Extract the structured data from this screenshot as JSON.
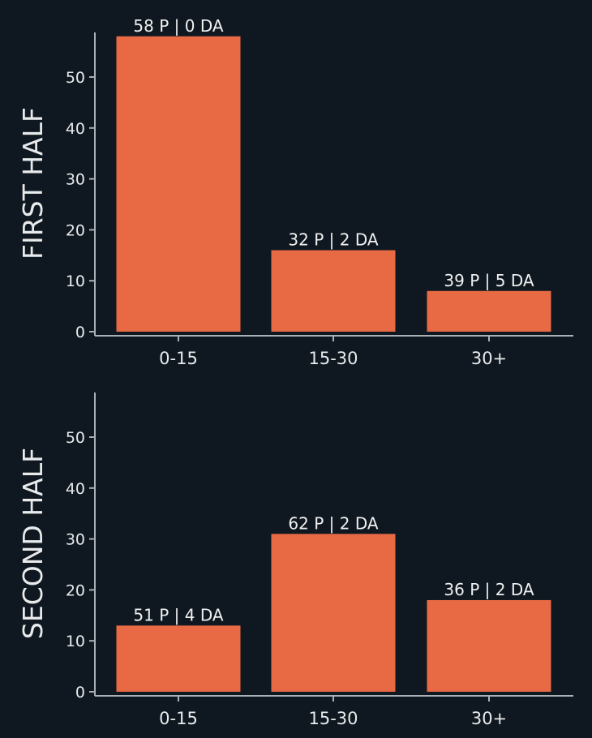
{
  "colors": {
    "background": "#0f1820",
    "bar": "#e76a45",
    "axis": "#a9b0b6",
    "text": "#e8eaec"
  },
  "chart_data": [
    {
      "type": "bar",
      "title": "FIRST HALF",
      "categories": [
        "0-15",
        "15-30",
        "30+"
      ],
      "values": [
        58,
        16,
        8
      ],
      "bar_labels": [
        "58 P | 0 DA",
        "32 P | 2 DA",
        "39 P | 5 DA"
      ],
      "yticks": [
        0,
        10,
        20,
        30,
        40,
        50
      ],
      "ylim": [
        0,
        58
      ],
      "xlabel": "",
      "ylabel": "",
      "grid": false
    },
    {
      "type": "bar",
      "title": "SECOND HALF",
      "categories": [
        "0-15",
        "15-30",
        "30+"
      ],
      "values": [
        13,
        31,
        18
      ],
      "bar_labels": [
        "51 P | 4 DA",
        "62 P | 2 DA",
        "36 P | 2 DA"
      ],
      "yticks": [
        0,
        10,
        20,
        30,
        40,
        50
      ],
      "ylim": [
        0,
        58
      ],
      "xlabel": "",
      "ylabel": "",
      "grid": false
    }
  ]
}
